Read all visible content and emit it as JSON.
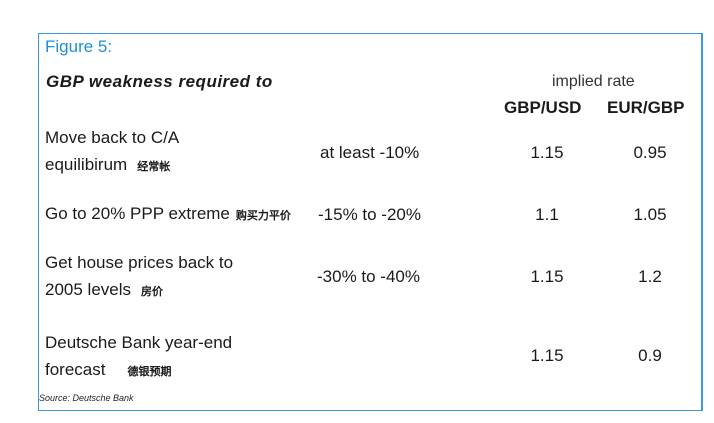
{
  "figure_label": "Figure 5:",
  "heading": "GBP weakness required to",
  "implied_rate_label": "implied rate",
  "columns": [
    "GBP/USD",
    "EUR/GBP"
  ],
  "rows": [
    {
      "label_line1": "Move back to C/A",
      "label_line2": "equilibirum",
      "cn_note": "经常帐",
      "range": "at least -10%",
      "gbp_usd": "1.15",
      "eur_gbp": "0.95"
    },
    {
      "label_line1": "Go to 20% PPP extreme",
      "label_line2": "",
      "cn_note": "购买力平价",
      "range": "-15% to -20%",
      "gbp_usd": "1.1",
      "eur_gbp": "1.05"
    },
    {
      "label_line1": "Get house prices back to",
      "label_line2": "2005 levels",
      "cn_note": "房价",
      "range": "-30% to -40%",
      "gbp_usd": "1.15",
      "eur_gbp": "1.2"
    },
    {
      "label_line1": "Deutsche Bank year-end",
      "label_line2": "forecast",
      "cn_note": "德银预期",
      "range": "",
      "gbp_usd": "1.15",
      "eur_gbp": "0.9"
    }
  ],
  "source": "Source: Deutsche Bank"
}
